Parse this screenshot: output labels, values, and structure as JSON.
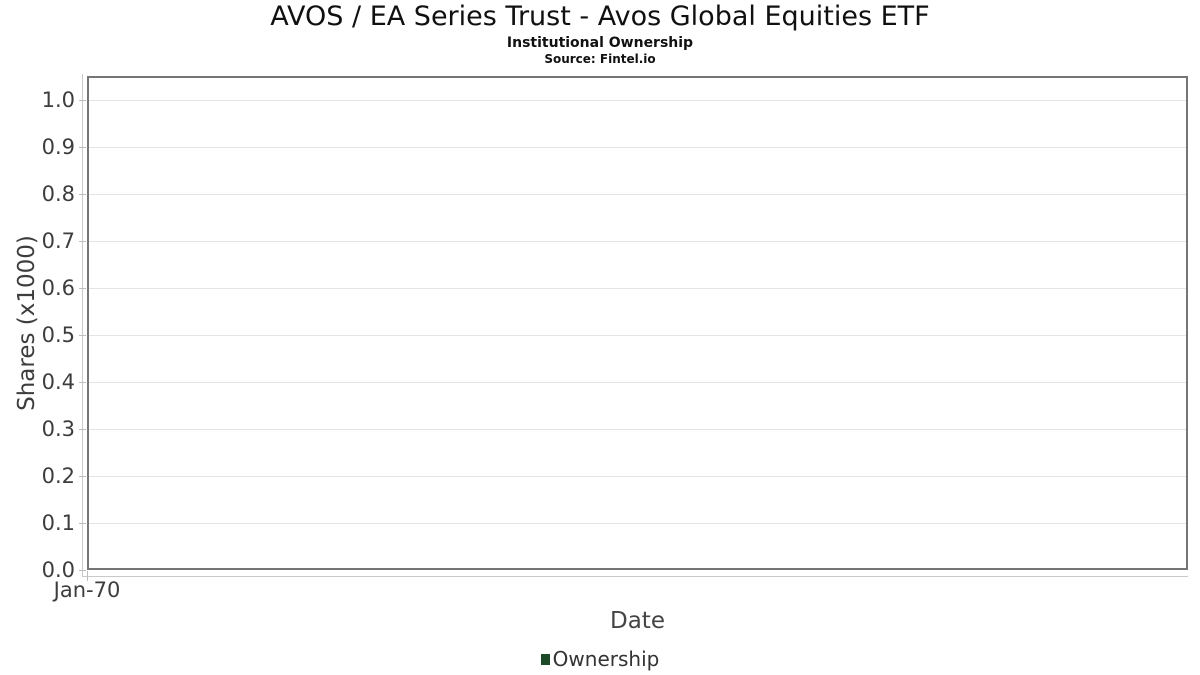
{
  "header": {
    "title": "AVOS / EA Series Trust - Avos Global Equities ETF",
    "subtitle": "Institutional Ownership",
    "source": "Source: Fintel.io"
  },
  "colors": {
    "plot_border": "#757575",
    "gridline": "#e4e4e4",
    "axis_line": "#c9c9c9",
    "tick_text": "#3d3d3d",
    "legend_marker_green": "#1d4b2a"
  },
  "chart_data": {
    "type": "line",
    "title": "AVOS / EA Series Trust - Avos Global Equities ETF",
    "subtitle": "Institutional Ownership",
    "source": "Source: Fintel.io",
    "xlabel": "Date",
    "ylabel": "Shares (x1000)",
    "x_tick_labels": [
      "Jan-70"
    ],
    "y_ticks": [
      {
        "value": 0.0,
        "label": "0.0"
      },
      {
        "value": 0.1,
        "label": "0.1"
      },
      {
        "value": 0.2,
        "label": "0.2"
      },
      {
        "value": 0.3,
        "label": "0.3"
      },
      {
        "value": 0.4,
        "label": "0.4"
      },
      {
        "value": 0.5,
        "label": "0.5"
      },
      {
        "value": 0.6,
        "label": "0.6"
      },
      {
        "value": 0.7,
        "label": "0.7"
      },
      {
        "value": 0.8,
        "label": "0.8"
      },
      {
        "value": 0.9,
        "label": "0.9"
      },
      {
        "value": 1.0,
        "label": "1.0"
      }
    ],
    "ylim": [
      0,
      1.05
    ],
    "grid": "horizontal",
    "legend_position": "bottom",
    "series": [
      {
        "name": "Ownership",
        "color": "#1d4b2a",
        "x": [],
        "y": []
      }
    ]
  }
}
